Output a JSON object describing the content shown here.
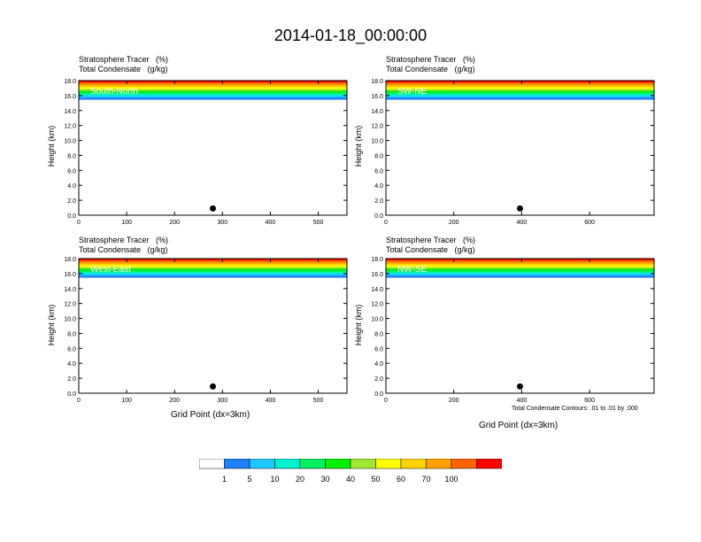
{
  "page": {
    "title": "2014-01-18_00:00:00",
    "panel_title_line1": "Stratosphere Tracer   (%)",
    "panel_title_line2": "Total Condensate   (g/kg)",
    "ylabel": "Height (km)",
    "xlabel": "Grid Point (dx=3km)",
    "footnote": "Total Condensate Contours: .01 to .01 by .000"
  },
  "colorbar": {
    "colors": [
      "#ffffff",
      "#1e82ff",
      "#1ec8ff",
      "#00f0d2",
      "#00f064",
      "#00f000",
      "#a0e632",
      "#ffff00",
      "#ffd200",
      "#ffa000",
      "#ff6400",
      "#ff0000"
    ],
    "labels": [
      "1",
      "5",
      "10",
      "20",
      "30",
      "40",
      "50",
      "60",
      "70",
      "100"
    ]
  },
  "chart_data": [
    {
      "type": "heatmap",
      "name": "South-North",
      "xlim": [
        0,
        560
      ],
      "ylim": [
        0,
        18
      ],
      "xticks": [
        "0",
        "100",
        "200",
        "300",
        "400",
        "500"
      ],
      "yticks": [
        "0.0",
        "2.0",
        "4.0",
        "6.0",
        "8.0",
        "10.0",
        "12.0",
        "14.0",
        "16.0",
        "18.0"
      ],
      "tropopause_km": 15.5,
      "marker_x": 280
    },
    {
      "type": "heatmap",
      "name": "SW-NE",
      "xlim": [
        0,
        790
      ],
      "ylim": [
        0,
        18
      ],
      "xticks": [
        "0",
        "200",
        "400",
        "600"
      ],
      "yticks": [
        "0.0",
        "2.0",
        "4.0",
        "6.0",
        "8.0",
        "10.0",
        "12.0",
        "14.0",
        "16.0",
        "18.0"
      ],
      "tropopause_km": 15.5,
      "marker_x": 395
    },
    {
      "type": "heatmap",
      "name": "West-East",
      "xlim": [
        0,
        560
      ],
      "ylim": [
        0,
        18
      ],
      "xticks": [
        "0",
        "100",
        "200",
        "300",
        "400",
        "500"
      ],
      "yticks": [
        "0.0",
        "2.0",
        "4.0",
        "6.0",
        "8.0",
        "10.0",
        "12.0",
        "14.0",
        "16.0",
        "18.0"
      ],
      "tropopause_km": 15.5,
      "marker_x": 280
    },
    {
      "type": "heatmap",
      "name": "NW-SE",
      "xlim": [
        0,
        790
      ],
      "ylim": [
        0,
        18
      ],
      "xticks": [
        "0",
        "200",
        "400",
        "600"
      ],
      "yticks": [
        "0.0",
        "2.0",
        "4.0",
        "6.0",
        "8.0",
        "10.0",
        "12.0",
        "14.0",
        "16.0",
        "18.0"
      ],
      "tropopause_km": 15.5,
      "marker_x": 395
    }
  ]
}
